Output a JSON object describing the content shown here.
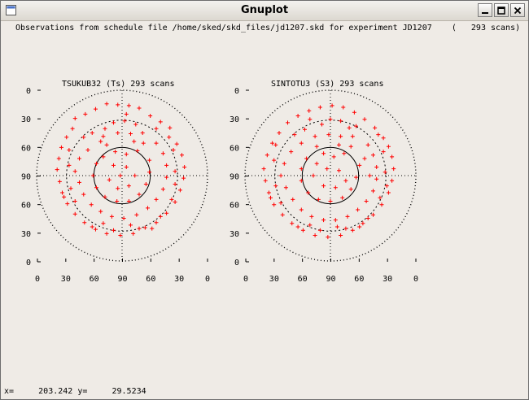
{
  "window": {
    "title": "Gnuplot"
  },
  "header": "Observations from schedule file /home/sked/skd_files/jd1207.skd for experiment JD1207    (   293 scans)",
  "colors": {
    "points": "#ff0000",
    "axes": "#000000",
    "background": "#efebe6"
  },
  "icons": {
    "app": "gnuplot-app-icon",
    "minimize": "minimize-icon",
    "maximize": "maximize-icon",
    "close": "close-icon"
  },
  "status": {
    "x_label": "x=",
    "x_value": "203.242",
    "y_label": "y=",
    "y_value": "29.5234"
  },
  "chart_data": [
    {
      "type": "scatter",
      "station": "TSUKUB32 (Ts)",
      "scans": "293 scans",
      "title": "TSUKUB32 (Ts)  293 scans",
      "elevation_ticks": [
        "0",
        "30",
        "60",
        "90",
        "60",
        "30",
        "0"
      ],
      "x_ticks": [
        "0",
        "30",
        "60",
        "90",
        "60",
        "30",
        "0"
      ],
      "points": [
        [
          -0.55,
          0.67
        ],
        [
          -0.43,
          0.72
        ],
        [
          -0.31,
          0.78
        ],
        [
          -0.18,
          0.84
        ],
        [
          -0.05,
          0.83
        ],
        [
          0.08,
          0.82
        ],
        [
          0.2,
          0.79
        ],
        [
          0.33,
          0.7
        ],
        [
          0.45,
          0.63
        ],
        [
          0.56,
          0.56
        ],
        [
          -0.65,
          0.45
        ],
        [
          -0.71,
          0.33
        ],
        [
          -0.74,
          0.2
        ],
        [
          -0.76,
          0.07
        ],
        [
          -0.73,
          -0.07
        ],
        [
          -0.7,
          -0.2
        ],
        [
          -0.64,
          -0.33
        ],
        [
          -0.55,
          -0.45
        ],
        [
          -0.44,
          -0.55
        ],
        [
          -0.31,
          -0.63
        ],
        [
          -0.18,
          -0.68
        ],
        [
          -0.02,
          -0.7
        ],
        [
          0.13,
          -0.68
        ],
        [
          0.27,
          -0.61
        ],
        [
          0.4,
          -0.55
        ],
        [
          0.52,
          -0.44
        ],
        [
          0.62,
          -0.31
        ],
        [
          0.68,
          -0.17
        ],
        [
          0.72,
          -0.03
        ],
        [
          0.73,
          0.1
        ],
        [
          0.7,
          0.24
        ],
        [
          0.64,
          0.37
        ],
        [
          -0.2,
          0.55
        ],
        [
          -0.1,
          0.62
        ],
        [
          0.03,
          0.64
        ],
        [
          0.16,
          0.6
        ],
        [
          0.24,
          0.5
        ],
        [
          0.25,
          0.38
        ],
        [
          0.18,
          0.29
        ],
        [
          0.05,
          0.25
        ],
        [
          -0.08,
          0.28
        ],
        [
          -0.18,
          0.36
        ],
        [
          -0.22,
          0.46
        ],
        [
          -0.05,
          0.5
        ],
        [
          0.1,
          0.49
        ],
        [
          0.14,
          0.4
        ],
        [
          -0.45,
          0.45
        ],
        [
          -0.35,
          0.5
        ],
        [
          -0.25,
          0.4
        ],
        [
          -0.4,
          0.3
        ],
        [
          -0.5,
          0.2
        ],
        [
          -0.55,
          0.05
        ],
        [
          -0.5,
          -0.08
        ],
        [
          -0.45,
          -0.22
        ],
        [
          -0.36,
          -0.34
        ],
        [
          -0.25,
          -0.42
        ],
        [
          -0.12,
          -0.48
        ],
        [
          0.02,
          -0.5
        ],
        [
          0.17,
          -0.46
        ],
        [
          0.3,
          -0.38
        ],
        [
          0.4,
          -0.28
        ],
        [
          0.48,
          -0.16
        ],
        [
          0.52,
          -0.02
        ],
        [
          0.52,
          0.12
        ],
        [
          0.48,
          0.26
        ],
        [
          0.4,
          0.38
        ],
        [
          0.32,
          0.18
        ],
        [
          0.32,
          0.04
        ],
        [
          0.28,
          -0.1
        ],
        [
          0.2,
          -0.22
        ],
        [
          0.08,
          -0.3
        ],
        [
          -0.06,
          -0.3
        ],
        [
          -0.2,
          -0.25
        ],
        [
          -0.3,
          -0.14
        ],
        [
          -0.34,
          0.0
        ],
        [
          -0.3,
          0.14
        ],
        [
          -0.22,
          0.22
        ],
        [
          -0.1,
          0.12
        ],
        [
          0.05,
          0.1
        ],
        [
          0.15,
          0.0
        ],
        [
          0.08,
          -0.12
        ],
        [
          -0.05,
          -0.15
        ],
        [
          -0.15,
          -0.05
        ],
        [
          -0.02,
          0.0
        ],
        [
          -0.6,
          -0.15
        ],
        [
          -0.62,
          0.12
        ],
        [
          -0.55,
          -0.3
        ],
        [
          -0.35,
          -0.6
        ],
        [
          -0.1,
          -0.64
        ],
        [
          0.2,
          -0.62
        ],
        [
          0.45,
          -0.48
        ],
        [
          0.58,
          -0.28
        ],
        [
          0.62,
          0.05
        ],
        [
          0.6,
          0.3
        ],
        [
          0.55,
          0.45
        ],
        [
          -0.62,
          0.3
        ],
        [
          -0.58,
          0.55
        ],
        [
          0.05,
          0.72
        ],
        [
          0.4,
          0.55
        ],
        [
          -0.68,
          -0.25
        ],
        [
          0.35,
          -0.62
        ],
        [
          -0.22,
          -0.56
        ],
        [
          0.1,
          -0.58
        ],
        [
          0.62,
          -0.1
        ]
      ]
    },
    {
      "type": "scatter",
      "station": "SINTOTU3 (S3)",
      "scans": "293 scans",
      "title": "SINTOTU3 (S3)  293 scans",
      "elevation_ticks": [
        "0",
        "30",
        "60",
        "90",
        "60",
        "30",
        "0"
      ],
      "x_ticks": [
        "0",
        "30",
        "60",
        "90",
        "60",
        "30",
        "0"
      ],
      "points": [
        [
          -0.5,
          0.62
        ],
        [
          -0.38,
          0.7
        ],
        [
          -0.25,
          0.76
        ],
        [
          -0.12,
          0.8
        ],
        [
          0.02,
          0.82
        ],
        [
          0.15,
          0.8
        ],
        [
          0.28,
          0.74
        ],
        [
          0.4,
          0.66
        ],
        [
          0.52,
          0.56
        ],
        [
          0.62,
          0.44
        ],
        [
          -0.6,
          0.5
        ],
        [
          -0.68,
          0.38
        ],
        [
          -0.74,
          0.24
        ],
        [
          -0.78,
          0.08
        ],
        [
          -0.76,
          -0.06
        ],
        [
          -0.72,
          -0.2
        ],
        [
          -0.66,
          -0.34
        ],
        [
          -0.56,
          -0.46
        ],
        [
          -0.45,
          -0.56
        ],
        [
          -0.32,
          -0.64
        ],
        [
          -0.18,
          -0.7
        ],
        [
          -0.03,
          -0.72
        ],
        [
          0.12,
          -0.7
        ],
        [
          0.26,
          -0.64
        ],
        [
          0.38,
          -0.56
        ],
        [
          0.5,
          -0.46
        ],
        [
          0.6,
          -0.34
        ],
        [
          0.68,
          -0.2
        ],
        [
          0.72,
          -0.06
        ],
        [
          0.74,
          0.08
        ],
        [
          0.72,
          0.22
        ],
        [
          0.68,
          0.34
        ],
        [
          -0.1,
          0.6
        ],
        [
          0.0,
          0.66
        ],
        [
          0.12,
          0.64
        ],
        [
          0.22,
          0.56
        ],
        [
          0.26,
          0.46
        ],
        [
          0.24,
          0.34
        ],
        [
          0.16,
          0.26
        ],
        [
          0.04,
          0.22
        ],
        [
          -0.08,
          0.26
        ],
        [
          -0.16,
          0.34
        ],
        [
          -0.18,
          0.46
        ],
        [
          -0.02,
          0.48
        ],
        [
          0.12,
          0.46
        ],
        [
          0.1,
          0.36
        ],
        [
          -0.42,
          0.48
        ],
        [
          -0.3,
          0.54
        ],
        [
          -0.34,
          0.38
        ],
        [
          -0.46,
          0.28
        ],
        [
          -0.54,
          0.14
        ],
        [
          -0.58,
          0.0
        ],
        [
          -0.52,
          -0.14
        ],
        [
          -0.44,
          -0.28
        ],
        [
          -0.34,
          -0.4
        ],
        [
          -0.22,
          -0.48
        ],
        [
          -0.08,
          -0.52
        ],
        [
          0.06,
          -0.52
        ],
        [
          0.2,
          -0.48
        ],
        [
          0.32,
          -0.4
        ],
        [
          0.42,
          -0.3
        ],
        [
          0.5,
          -0.18
        ],
        [
          0.54,
          -0.04
        ],
        [
          0.54,
          0.1
        ],
        [
          0.5,
          0.24
        ],
        [
          0.44,
          0.36
        ],
        [
          0.34,
          0.12
        ],
        [
          0.3,
          -0.02
        ],
        [
          0.24,
          -0.16
        ],
        [
          0.14,
          -0.26
        ],
        [
          0.0,
          -0.3
        ],
        [
          -0.14,
          -0.28
        ],
        [
          -0.26,
          -0.2
        ],
        [
          -0.34,
          -0.06
        ],
        [
          -0.34,
          0.08
        ],
        [
          -0.28,
          0.2
        ],
        [
          -0.16,
          0.14
        ],
        [
          -0.04,
          0.08
        ],
        [
          0.1,
          0.06
        ],
        [
          0.18,
          -0.06
        ],
        [
          0.06,
          -0.14
        ],
        [
          -0.08,
          -0.12
        ],
        [
          -0.2,
          0.0
        ],
        [
          0.4,
          0.2
        ],
        [
          -0.64,
          -0.12
        ],
        [
          -0.66,
          0.18
        ],
        [
          -0.58,
          -0.32
        ],
        [
          -0.38,
          -0.6
        ],
        [
          -0.12,
          -0.64
        ],
        [
          0.18,
          -0.62
        ],
        [
          0.44,
          -0.5
        ],
        [
          0.58,
          -0.26
        ],
        [
          0.64,
          0.04
        ],
        [
          0.62,
          0.28
        ],
        [
          0.56,
          0.48
        ],
        [
          -0.64,
          0.36
        ],
        [
          0.3,
          0.58
        ],
        [
          -0.24,
          0.66
        ],
        [
          0.66,
          -0.12
        ],
        [
          -0.7,
          -0.26
        ],
        [
          0.34,
          -0.6
        ],
        [
          -0.24,
          -0.58
        ],
        [
          0.08,
          -0.6
        ],
        [
          0.46,
          0.0
        ]
      ]
    }
  ]
}
